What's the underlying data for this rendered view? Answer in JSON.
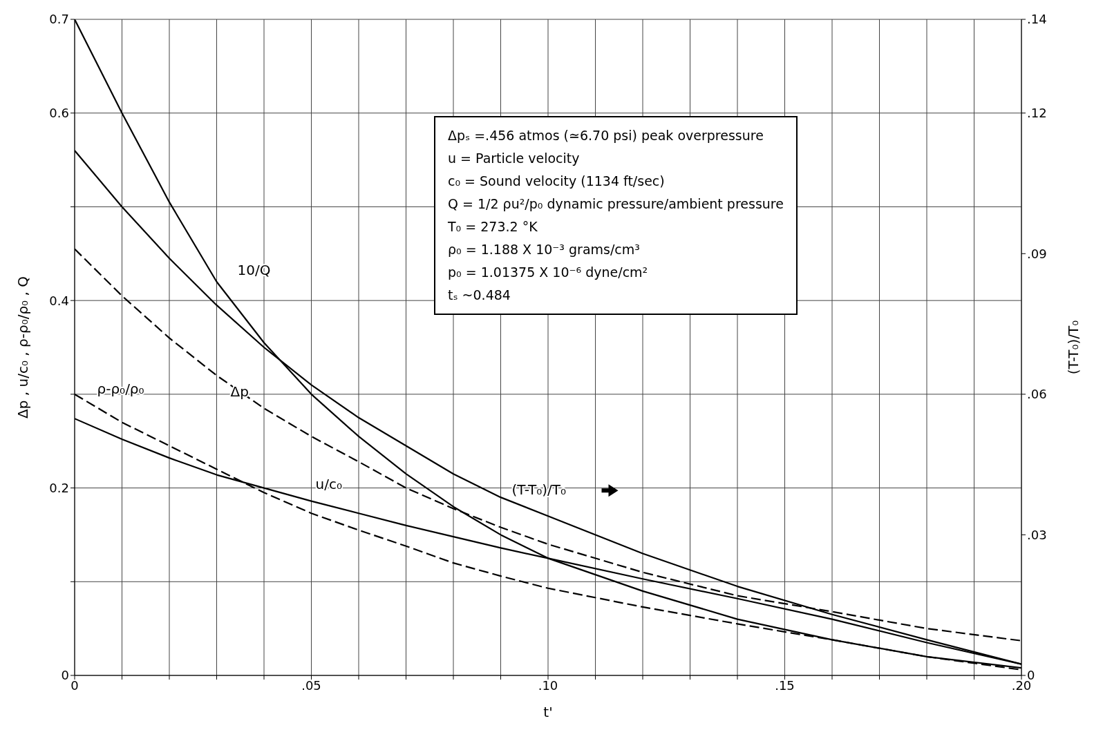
{
  "chart_data": {
    "type": "line",
    "xlabel": "t'",
    "ylabel": "Δp , u/c₀ , ρ-ρ₀/ρ₀ , Q",
    "y2label": "(T-T₀)/T₀",
    "x": [
      0,
      0.01,
      0.02,
      0.03,
      0.04,
      0.05,
      0.06,
      0.07,
      0.08,
      0.09,
      0.1,
      0.12,
      0.14,
      0.16,
      0.18,
      0.2
    ],
    "series": [
      {
        "name": "10/Q",
        "color": "#000000",
        "line_style": "solid",
        "values": [
          0.7,
          0.6,
          0.505,
          0.42,
          0.355,
          0.3,
          0.255,
          0.215,
          0.18,
          0.15,
          0.125,
          0.09,
          0.06,
          0.038,
          0.02,
          0.008
        ]
      },
      {
        "name": "(T-T₀)/T₀",
        "color": "#000000",
        "line_style": "solid",
        "axis": "y2",
        "values": [
          0.112,
          0.1,
          0.089,
          0.079,
          0.07,
          0.062,
          0.055,
          0.049,
          0.043,
          0.038,
          0.034,
          0.026,
          0.019,
          0.013,
          0.0076,
          0.0024
        ]
      },
      {
        "name": "Δp",
        "color": "#000000",
        "line_style": "dashed",
        "values": [
          0.455,
          0.405,
          0.36,
          0.32,
          0.285,
          0.255,
          0.228,
          0.2,
          0.178,
          0.158,
          0.14,
          0.11,
          0.085,
          0.068,
          0.05,
          0.037
        ]
      },
      {
        "name": "ρ-ρ₀/ρ₀",
        "color": "#000000",
        "line_style": "dashed",
        "values": [
          0.3,
          0.27,
          0.245,
          0.22,
          0.195,
          0.173,
          0.155,
          0.138,
          0.12,
          0.106,
          0.093,
          0.073,
          0.055,
          0.038,
          0.02,
          0.006
        ]
      },
      {
        "name": "u/c₀",
        "color": "#000000",
        "line_style": "solid",
        "values": [
          0.274,
          0.252,
          0.232,
          0.214,
          0.2,
          0.186,
          0.173,
          0.16,
          0.148,
          0.136,
          0.125,
          0.103,
          0.082,
          0.06,
          0.035,
          0.012
        ]
      }
    ],
    "xlim": [
      0,
      0.2
    ],
    "xticks": [
      {
        "value": 0,
        "label": "0"
      },
      {
        "value": 0.01,
        "label": null
      },
      {
        "value": 0.02,
        "label": null
      },
      {
        "value": 0.03,
        "label": null
      },
      {
        "value": 0.04,
        "label": null
      },
      {
        "value": 0.05,
        "label": ".05"
      },
      {
        "value": 0.06,
        "label": null
      },
      {
        "value": 0.07,
        "label": null
      },
      {
        "value": 0.08,
        "label": null
      },
      {
        "value": 0.09,
        "label": null
      },
      {
        "value": 0.1,
        "label": ".10"
      },
      {
        "value": 0.11,
        "label": null
      },
      {
        "value": 0.12,
        "label": null
      },
      {
        "value": 0.13,
        "label": null
      },
      {
        "value": 0.14,
        "label": null
      },
      {
        "value": 0.15,
        "label": ".15"
      },
      {
        "value": 0.16,
        "label": null
      },
      {
        "value": 0.17,
        "label": null
      },
      {
        "value": 0.18,
        "label": null
      },
      {
        "value": 0.19,
        "label": null
      },
      {
        "value": 0.2,
        "label": ".20"
      }
    ],
    "ylim": [
      0,
      0.7
    ],
    "yticks": [
      0,
      {
        "value": 0.1,
        "label": null
      },
      0.2,
      {
        "value": 0.3,
        "label": null
      },
      0.4,
      {
        "value": 0.5,
        "label": null
      },
      0.6,
      0.7
    ],
    "y2lim": [
      0,
      0.14
    ],
    "y2ticks": [
      0,
      {
        "value": 0.03,
        "label": ".03"
      },
      {
        "value": 0.06,
        "label": ".06"
      },
      {
        "value": 0.09,
        "label": ".09"
      },
      {
        "value": 0.12,
        "label": ".12"
      },
      {
        "value": 0.14,
        "label": ".14"
      }
    ],
    "grid": true,
    "marker": "none",
    "annotations": [
      "Δpₛ =.456 atmos (≃6.70  psi) peak overpressure",
      "u  = Particle velocity",
      "c₀  = Sound velocity (1134 ft/sec)",
      "Q  = 1/2 ρu²/p₀ dynamic pressure/ambient pressure",
      "T₀  = 273.2 °K",
      "ρ₀  = 1.188 X 10⁻³ grams/cm³",
      "p₀  = 1.01375 X 10⁻⁶ dyne/cm²",
      "tₛ ~0.484"
    ]
  }
}
